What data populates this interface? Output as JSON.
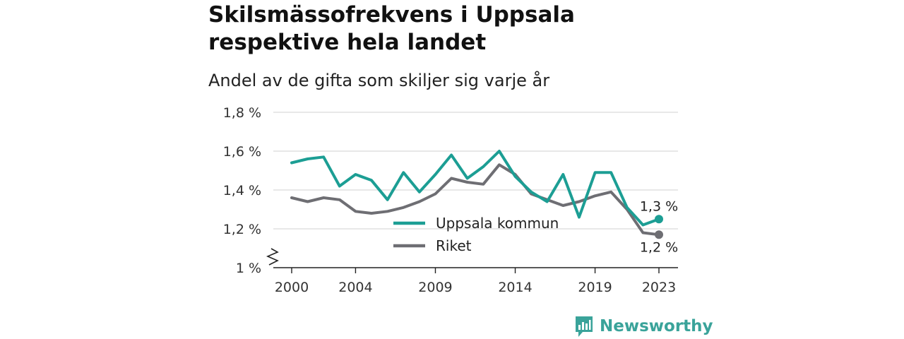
{
  "title_line1": "Skilsmässofrekvens i Uppsala",
  "title_line2": "respektive hela landet",
  "subtitle": "Andel av de gifta som skiljer sig varje år",
  "brand": "Newsworthy",
  "chart_data": {
    "type": "line",
    "x": [
      2000,
      2001,
      2002,
      2003,
      2004,
      2005,
      2006,
      2007,
      2008,
      2009,
      2010,
      2011,
      2012,
      2013,
      2014,
      2015,
      2016,
      2017,
      2018,
      2019,
      2020,
      2021,
      2022,
      2023
    ],
    "x_ticks": [
      2000,
      2004,
      2009,
      2014,
      2019,
      2023
    ],
    "x_tick_labels": [
      "2000",
      "2004",
      "2009",
      "2014",
      "2019",
      "2023"
    ],
    "y_ticks": [
      1.0,
      1.2,
      1.4,
      1.6,
      1.8
    ],
    "y_tick_labels": [
      "1 %",
      "1,2 %",
      "1,4 %",
      "1,6 %",
      "1,8 %"
    ],
    "ylim": [
      1.0,
      1.8
    ],
    "xlim": [
      2000,
      2023
    ],
    "y_axis_break": true,
    "grid": true,
    "legend_position": "center",
    "series": [
      {
        "name": "Uppsala kommun",
        "color": "#1c9e94",
        "values": [
          1.54,
          1.56,
          1.57,
          1.42,
          1.48,
          1.45,
          1.35,
          1.49,
          1.39,
          1.48,
          1.58,
          1.46,
          1.52,
          1.6,
          1.47,
          1.39,
          1.34,
          1.48,
          1.26,
          1.49,
          1.49,
          1.31,
          1.22,
          1.25
        ],
        "end_label": "1,3 %"
      },
      {
        "name": "Riket",
        "color": "#6e6e73",
        "values": [
          1.36,
          1.34,
          1.36,
          1.35,
          1.29,
          1.28,
          1.29,
          1.31,
          1.34,
          1.38,
          1.46,
          1.44,
          1.43,
          1.53,
          1.48,
          1.38,
          1.35,
          1.32,
          1.34,
          1.37,
          1.39,
          1.3,
          1.18,
          1.17
        ],
        "end_label": "1,2 %"
      }
    ]
  }
}
